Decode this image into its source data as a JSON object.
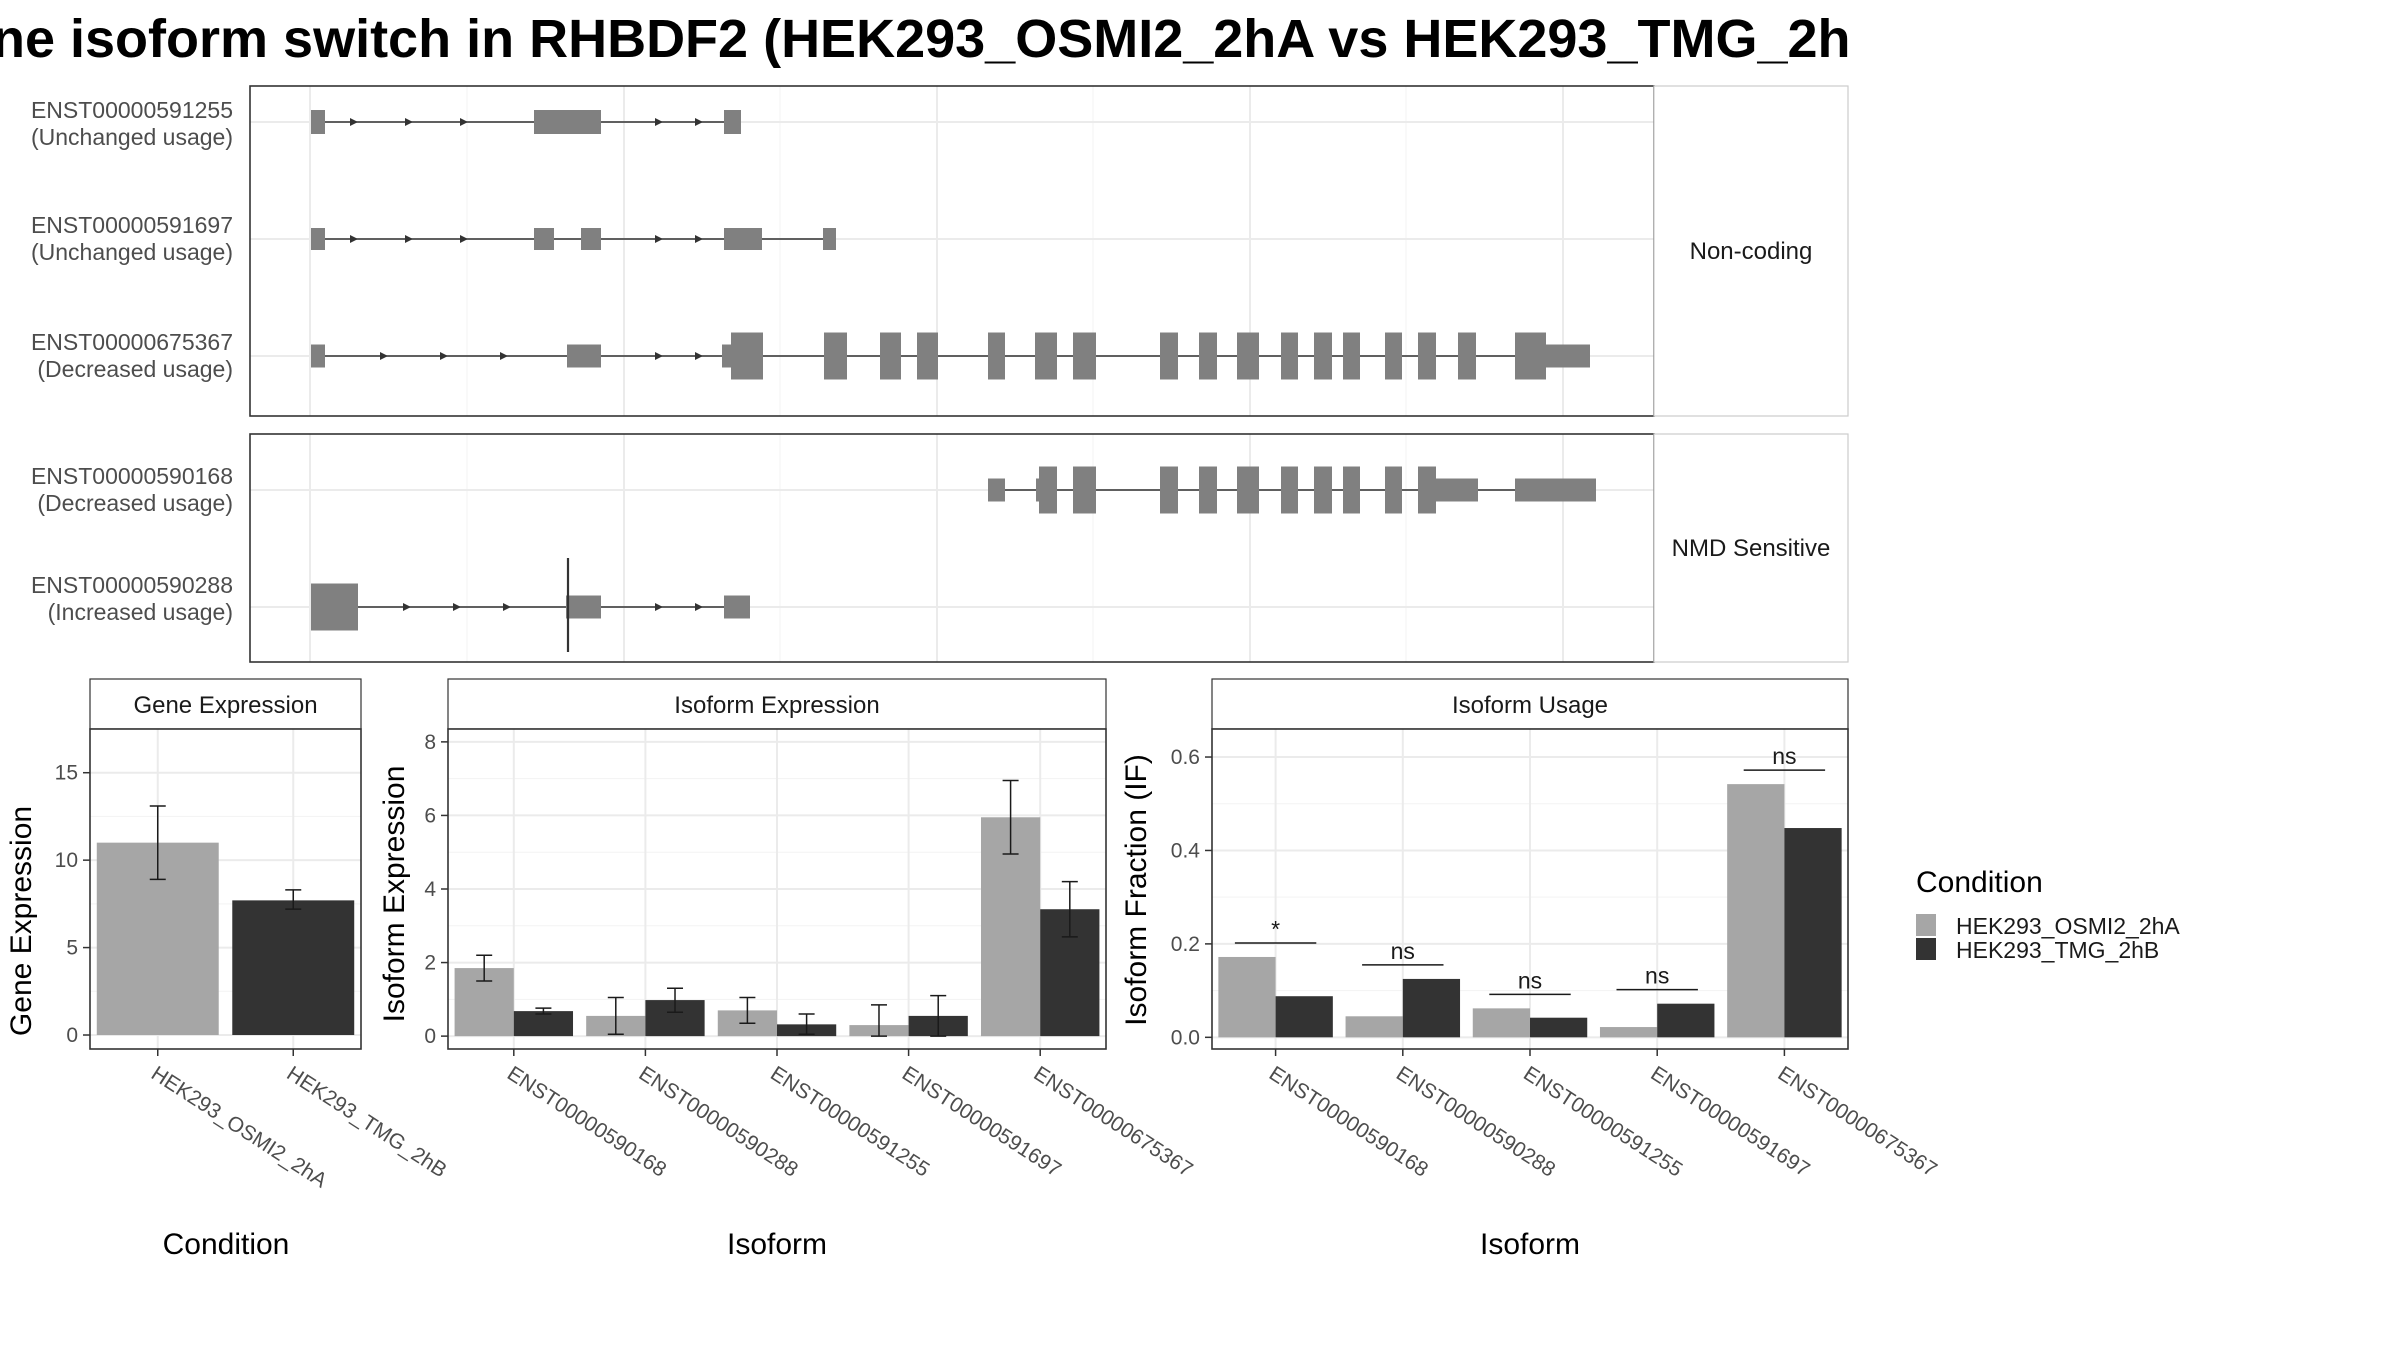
{
  "title": "ne isoform switch in RHBDF2 (HEK293_OSMI2_2hA vs HEK293_TMG_2h",
  "colors": {
    "cond_a": "#a6a6a6",
    "cond_b": "#333333",
    "exon": "#808080"
  },
  "structure": {
    "groups": [
      {
        "name": "Non-coding",
        "isoforms": [
          {
            "id": "ENST00000591255",
            "usage": "(Unchanged usage)"
          },
          {
            "id": "ENST00000591697",
            "usage": "(Unchanged usage)"
          },
          {
            "id": "ENST00000675367",
            "usage": "(Decreased usage)"
          }
        ]
      },
      {
        "name": "NMD Sensitive",
        "isoforms": [
          {
            "id": "ENST00000590168",
            "usage": "(Decreased usage)"
          },
          {
            "id": "ENST00000590288",
            "usage": "(Increased usage)"
          }
        ]
      }
    ]
  },
  "chart_data": [
    {
      "type": "bar",
      "strip": "Gene Expression",
      "xlabel": "Condition",
      "ylabel": "Gene Expression",
      "categories": [
        "HEK293_OSMI2_2hA",
        "HEK293_TMG_2hB"
      ],
      "values": [
        11.0,
        7.7
      ],
      "error_low": [
        8.9,
        7.2
      ],
      "error_high": [
        13.1,
        8.3
      ],
      "ylim": [
        -0.8,
        17.5
      ],
      "yticks": [
        0,
        5,
        10,
        15
      ]
    },
    {
      "type": "bar",
      "strip": "Isoform Expression",
      "xlabel": "Isoform",
      "ylabel": "Isoform Expression",
      "categories": [
        "ENST00000590168",
        "ENST00000590288",
        "ENST00000591255",
        "ENST00000591697",
        "ENST00000675367"
      ],
      "series": [
        {
          "name": "HEK293_OSMI2_2hA",
          "values": [
            1.85,
            0.55,
            0.7,
            0.3,
            5.95
          ],
          "error_low": [
            1.5,
            0.05,
            0.35,
            0.0,
            4.95
          ],
          "error_high": [
            2.2,
            1.05,
            1.05,
            0.85,
            6.95
          ]
        },
        {
          "name": "HEK293_TMG_2hB",
          "values": [
            0.68,
            0.98,
            0.32,
            0.55,
            3.45
          ],
          "error_low": [
            0.6,
            0.65,
            0.05,
            0.0,
            2.7
          ],
          "error_high": [
            0.76,
            1.3,
            0.6,
            1.1,
            4.2
          ]
        }
      ],
      "ylim": [
        -0.35,
        8.35
      ],
      "yticks": [
        0,
        2,
        4,
        6,
        8
      ]
    },
    {
      "type": "bar",
      "strip": "Isoform Usage",
      "xlabel": "Isoform",
      "ylabel": "Isoform Fraction (IF)",
      "categories": [
        "ENST00000590168",
        "ENST00000590288",
        "ENST00000591255",
        "ENST00000591697",
        "ENST00000675367"
      ],
      "series": [
        {
          "name": "HEK293_OSMI2_2hA",
          "values": [
            0.172,
            0.045,
            0.062,
            0.022,
            0.542
          ]
        },
        {
          "name": "HEK293_TMG_2hB",
          "values": [
            0.088,
            0.125,
            0.042,
            0.072,
            0.448
          ]
        }
      ],
      "significance": [
        "*",
        "ns",
        "ns",
        "ns",
        "ns"
      ],
      "ylim": [
        -0.025,
        0.66
      ],
      "yticks": [
        0.0,
        0.2,
        0.4,
        0.6
      ],
      "ytick_labels": [
        "0.0",
        "0.2",
        "0.4",
        "0.6"
      ]
    }
  ],
  "legend": {
    "title": "Condition",
    "entries": [
      "HEK293_OSMI2_2hA",
      "HEK293_TMG_2hB"
    ]
  }
}
